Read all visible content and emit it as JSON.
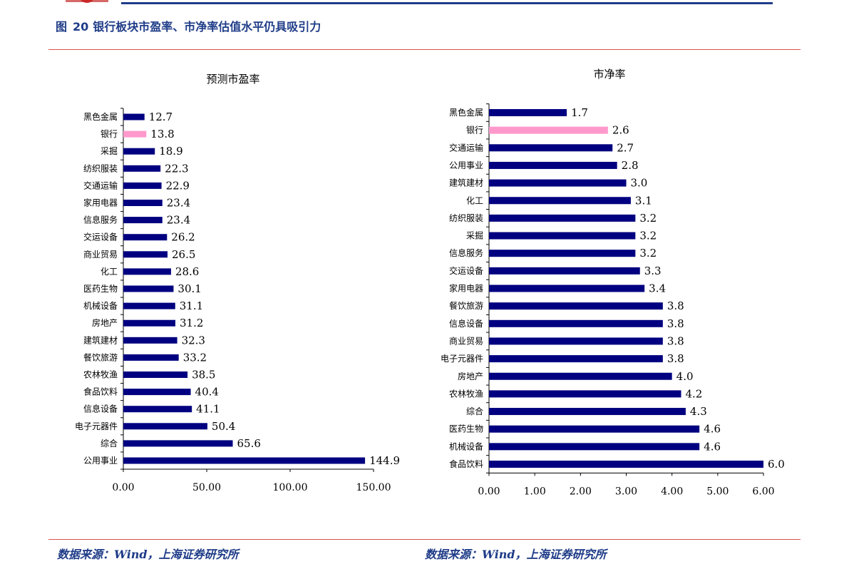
{
  "figure": {
    "label": "图",
    "number": "20",
    "title": "银行板块市盈率、市净率估值水平仍具吸引力"
  },
  "sources": {
    "left": "数据来源：Wind，上海证券研究所",
    "right": "数据来源：Wind，上海证券研究所"
  },
  "colors": {
    "bar": "#000080",
    "highlight": "#ff99cc",
    "rule": "#d9534f",
    "title": "#1f3c88"
  },
  "chart_data": [
    {
      "type": "bar",
      "orientation": "horizontal",
      "title": "预测市盈率",
      "categories": [
        "黑色金属",
        "银行",
        "采掘",
        "纺织服装",
        "交通运输",
        "家用电器",
        "信息服务",
        "交运设备",
        "商业贸易",
        "化工",
        "医药生物",
        "机械设备",
        "房地产",
        "建筑建材",
        "餐饮旅游",
        "农林牧渔",
        "食品饮料",
        "信息设备",
        "电子元器件",
        "综合",
        "公用事业"
      ],
      "values": [
        12.7,
        13.8,
        18.9,
        22.3,
        22.9,
        23.4,
        23.4,
        26.2,
        26.5,
        28.6,
        30.1,
        31.1,
        31.2,
        32.3,
        33.2,
        38.5,
        40.4,
        41.1,
        50.4,
        65.6,
        144.9
      ],
      "value_labels": [
        "12.7",
        "13.8",
        "18.9",
        "22.3",
        "22.9",
        "23.4",
        "23.4",
        "26.2",
        "26.5",
        "28.6",
        "30.1",
        "31.1",
        "31.2",
        "32.3",
        "33.2",
        "38.5",
        "40.4",
        "41.1",
        "50.4",
        "65.6",
        "144.9"
      ],
      "highlight": "银行",
      "xlim": [
        0,
        150
      ],
      "xticks": [
        0,
        50,
        100,
        150
      ],
      "xtick_labels": [
        "0.00",
        "50.00",
        "100.00",
        "150.00"
      ],
      "grid": false
    },
    {
      "type": "bar",
      "orientation": "horizontal",
      "title": "市净率",
      "categories": [
        "黑色金属",
        "银行",
        "交通运输",
        "公用事业",
        "建筑建材",
        "化工",
        "纺织服装",
        "采掘",
        "信息服务",
        "交运设备",
        "家用电器",
        "餐饮旅游",
        "信息设备",
        "商业贸易",
        "电子元器件",
        "房地产",
        "农林牧渔",
        "综合",
        "医药生物",
        "机械设备",
        "食品饮料"
      ],
      "values": [
        1.7,
        2.6,
        2.7,
        2.8,
        3.0,
        3.1,
        3.2,
        3.2,
        3.2,
        3.3,
        3.4,
        3.8,
        3.8,
        3.8,
        3.8,
        4.0,
        4.2,
        4.3,
        4.6,
        4.6,
        6.0
      ],
      "value_labels": [
        "1.7",
        "2.6",
        "2.7",
        "2.8",
        "3.0",
        "3.1",
        "3.2",
        "3.2",
        "3.2",
        "3.3",
        "3.4",
        "3.8",
        "3.8",
        "3.8",
        "3.8",
        "4.0",
        "4.2",
        "4.3",
        "4.6",
        "4.6",
        "6.0"
      ],
      "highlight": "银行",
      "xlim": [
        0,
        6
      ],
      "xticks": [
        0,
        1,
        2,
        3,
        4,
        5,
        6
      ],
      "xtick_labels": [
        "0.00",
        "1.00",
        "2.00",
        "3.00",
        "4.00",
        "5.00",
        "6.00"
      ],
      "grid": false
    }
  ]
}
